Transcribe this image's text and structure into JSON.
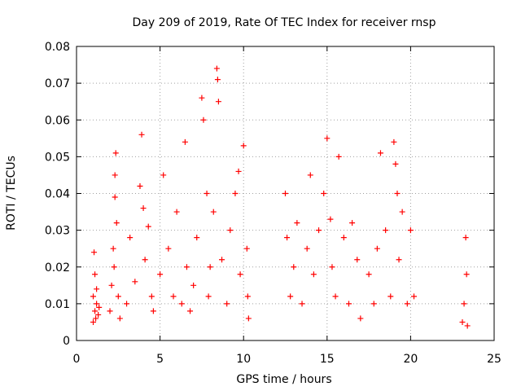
{
  "chart_data": {
    "type": "scatter",
    "title": "Day 209 of 2019, Rate Of TEC Index for receiver rnsp",
    "xlabel": "GPS time / hours",
    "ylabel": "ROTI / TECUs",
    "xlim": [
      0,
      25
    ],
    "ylim": [
      0,
      0.08
    ],
    "xticks": [
      "0",
      "5",
      "10",
      "15",
      "20",
      "25"
    ],
    "yticks": [
      "0",
      "0.01",
      "0.02",
      "0.03",
      "0.04",
      "0.05",
      "0.06",
      "0.07",
      "0.08"
    ],
    "grid": true,
    "marker": "+",
    "color": "#ff0000",
    "series": [
      {
        "x": [
          1.0,
          1.0,
          1.05,
          1.1,
          1.1,
          1.15,
          1.2,
          1.2,
          1.3,
          1.35,
          2.0,
          2.1,
          2.2,
          2.3,
          2.35,
          2.4,
          2.5,
          2.6,
          2.3,
          2.25,
          3.0,
          3.2,
          3.5,
          3.8,
          3.9,
          4.0,
          4.1,
          4.3,
          4.5,
          4.6,
          5.0,
          5.2,
          5.5,
          5.8,
          6.0,
          6.3,
          6.5,
          6.6,
          6.8,
          7.0,
          7.2,
          7.5,
          7.6,
          7.8,
          7.9,
          8.0,
          8.2,
          8.4,
          8.45,
          8.5,
          8.7,
          9.0,
          9.2,
          9.5,
          9.7,
          9.8,
          10.0,
          10.2,
          10.3,
          10.25,
          12.5,
          12.6,
          12.8,
          13.0,
          13.2,
          13.5,
          13.8,
          14.0,
          14.2,
          14.5,
          14.8,
          15.0,
          15.2,
          15.3,
          15.5,
          15.7,
          16.0,
          16.3,
          16.5,
          16.8,
          17.0,
          17.5,
          17.8,
          18.0,
          18.2,
          18.5,
          18.8,
          19.0,
          19.1,
          19.2,
          19.3,
          19.5,
          19.8,
          20.0,
          20.2,
          23.1,
          23.2,
          23.3,
          23.35,
          23.4
        ],
        "y": [
          0.005,
          0.012,
          0.024,
          0.008,
          0.018,
          0.006,
          0.01,
          0.014,
          0.007,
          0.009,
          0.008,
          0.015,
          0.025,
          0.039,
          0.051,
          0.032,
          0.012,
          0.006,
          0.045,
          0.02,
          0.01,
          0.028,
          0.016,
          0.042,
          0.056,
          0.036,
          0.022,
          0.031,
          0.012,
          0.008,
          0.018,
          0.045,
          0.025,
          0.012,
          0.035,
          0.01,
          0.054,
          0.02,
          0.008,
          0.015,
          0.028,
          0.066,
          0.06,
          0.04,
          0.012,
          0.02,
          0.035,
          0.074,
          0.071,
          0.065,
          0.022,
          0.01,
          0.03,
          0.04,
          0.046,
          0.018,
          0.053,
          0.025,
          0.006,
          0.012,
          0.04,
          0.028,
          0.012,
          0.02,
          0.032,
          0.01,
          0.025,
          0.045,
          0.018,
          0.03,
          0.04,
          0.055,
          0.033,
          0.02,
          0.012,
          0.05,
          0.028,
          0.01,
          0.032,
          0.022,
          0.006,
          0.018,
          0.01,
          0.025,
          0.051,
          0.03,
          0.012,
          0.054,
          0.048,
          0.04,
          0.022,
          0.035,
          0.01,
          0.03,
          0.012,
          0.005,
          0.01,
          0.028,
          0.018,
          0.004
        ]
      }
    ]
  }
}
